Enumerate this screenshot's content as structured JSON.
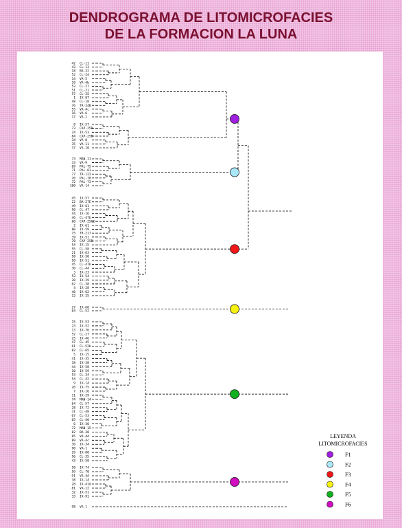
{
  "title_line1": "DENDROGRAMA DE LITOMICROFACIES",
  "title_line2": "DE LA FORMACION LA LUNA",
  "legend": {
    "title": "LEYENDA",
    "subtitle": "LITOMICROFACIES",
    "items": [
      {
        "label": "F1",
        "color": "#a020e0"
      },
      {
        "label": "F2",
        "color": "#a8e8f8"
      },
      {
        "label": "F3",
        "color": "#f01818"
      },
      {
        "label": "F4",
        "color": "#f8f010"
      },
      {
        "label": "F5",
        "color": "#10b020"
      },
      {
        "label": "F6",
        "color": "#d010c0"
      }
    ]
  },
  "dendrogram": {
    "clusters": [
      {
        "leaves": [
          {
            "n": "42",
            "code": "CL-11"
          },
          {
            "n": "43",
            "code": "CL-13"
          },
          {
            "n": "18",
            "code": "BA-32"
          },
          {
            "n": "52",
            "code": "CL-24"
          },
          {
            "n": "14",
            "code": "VA-5"
          },
          {
            "n": "19",
            "code": "VA-4b"
          },
          {
            "n": "53",
            "code": "CL-27"
          },
          {
            "n": "51",
            "code": "CL-21"
          },
          {
            "n": "57",
            "code": "CL-35"
          },
          {
            "n": "1",
            "code": "IX-87"
          },
          {
            "n": "48",
            "code": "CL-18"
          },
          {
            "n": "76",
            "code": "TR-24B"
          },
          {
            "n": "55",
            "code": "VA-4c"
          },
          {
            "n": "16",
            "code": "VA-6"
          },
          {
            "n": "17",
            "code": "VA-1"
          }
        ]
      },
      {
        "leaves": [
          {
            "n": "8",
            "code": "IX-57"
          },
          {
            "n": "73",
            "code": "CAP-25B"
          },
          {
            "n": "24",
            "code": "IX-53"
          },
          {
            "n": "84",
            "code": "CAP-25B"
          },
          {
            "n": "34",
            "code": "VA-8"
          },
          {
            "n": "35",
            "code": "VA-11"
          },
          {
            "n": "37",
            "code": "VA-10"
          }
        ]
      },
      {
        "leaves": [
          {
            "n": "73",
            "code": "MAN-11"
          },
          {
            "n": "33",
            "code": "VA-9"
          },
          {
            "n": "69",
            "code": "PAL-75"
          },
          {
            "n": "71",
            "code": "PAL-81"
          },
          {
            "n": "77",
            "code": "TR-122"
          },
          {
            "n": "70",
            "code": "PAL-78"
          },
          {
            "n": "72",
            "code": "PAL-73"
          },
          {
            "n": "100",
            "code": "VA-14"
          }
        ]
      },
      {
        "leaves": [
          {
            "n": "45",
            "code": "IX-57"
          },
          {
            "n": "22",
            "code": "BA-27E"
          },
          {
            "n": "49",
            "code": "IX-61"
          },
          {
            "n": "50",
            "code": "CL-47"
          },
          {
            "n": "44",
            "code": "IX-16"
          },
          {
            "n": "46",
            "code": "CL-47b"
          },
          {
            "n": "60",
            "code": "CAP-25C2"
          },
          {
            "n": "2",
            "code": "IX-61"
          },
          {
            "n": "80",
            "code": "IX-59"
          },
          {
            "n": "75",
            "code": "TR-217"
          },
          {
            "n": "39",
            "code": "IX-51"
          },
          {
            "n": "78",
            "code": "CAP-25B"
          },
          {
            "n": "54",
            "code": "IX-15"
          },
          {
            "n": "55",
            "code": "CL-58"
          },
          {
            "n": "21",
            "code": "IX-63"
          },
          {
            "n": "58",
            "code": "IX-50"
          },
          {
            "n": "59",
            "code": "IX-51"
          },
          {
            "n": "45",
            "code": "CL-47b"
          },
          {
            "n": "30",
            "code": "CL-44"
          },
          {
            "n": "3",
            "code": "IX-23"
          },
          {
            "n": "53",
            "code": "IX-54"
          },
          {
            "n": "20",
            "code": "IX-29"
          },
          {
            "n": "62",
            "code": "CL-38"
          },
          {
            "n": "4",
            "code": "IX-28"
          },
          {
            "n": "40",
            "code": "IX-62"
          },
          {
            "n": "12",
            "code": "IX-25"
          }
        ]
      },
      {
        "leaves": [
          {
            "n": "27",
            "code": "IX-60"
          },
          {
            "n": "63",
            "code": "CL-52"
          }
        ]
      },
      {
        "leaves": [
          {
            "n": "15",
            "code": "IX-53"
          },
          {
            "n": "23",
            "code": "IX-52"
          },
          {
            "n": "13",
            "code": "IX-76"
          },
          {
            "n": "52",
            "code": "CL-27"
          },
          {
            "n": "25",
            "code": "IX-46"
          },
          {
            "n": "47",
            "code": "CL-45"
          },
          {
            "n": "61",
            "code": "CL-52b"
          },
          {
            "n": "82",
            "code": "CL-65"
          },
          {
            "n": "5",
            "code": "IX-15"
          },
          {
            "n": "41",
            "code": "IX-35"
          },
          {
            "n": "18",
            "code": "IX-38"
          },
          {
            "n": "44",
            "code": "IX-58"
          },
          {
            "n": "10",
            "code": "IX-59"
          },
          {
            "n": "53",
            "code": "CL-34"
          },
          {
            "n": "54",
            "code": "CL-42"
          },
          {
            "n": "9",
            "code": "IX-14"
          },
          {
            "n": "26",
            "code": "IX-75"
          },
          {
            "n": "7",
            "code": "IX-16"
          },
          {
            "n": "11",
            "code": "IX-29"
          },
          {
            "n": "74",
            "code": "MAN-14"
          },
          {
            "n": "64",
            "code": "CL-57"
          },
          {
            "n": "28",
            "code": "IX-72"
          },
          {
            "n": "31",
            "code": "CL-48"
          },
          {
            "n": "67",
            "code": "CL-53"
          },
          {
            "n": "65",
            "code": "CL-40"
          },
          {
            "n": "6",
            "code": "IX-30"
          },
          {
            "n": "72",
            "code": "MAN-15"
          },
          {
            "n": "82",
            "code": "BA-38"
          },
          {
            "n": "85",
            "code": "VA-4A"
          },
          {
            "n": "89",
            "code": "VA-4c"
          },
          {
            "n": "36",
            "code": "IX-34"
          },
          {
            "n": "90",
            "code": "VA-1"
          },
          {
            "n": "29",
            "code": "IX-80"
          },
          {
            "n": "56",
            "code": "CL-35"
          },
          {
            "n": "43",
            "code": "IX-58"
          }
        ]
      },
      {
        "leaves": [
          {
            "n": "58",
            "code": "IX-74"
          },
          {
            "n": "59",
            "code": "CL-70"
          },
          {
            "n": "91",
            "code": "VA-4A"
          },
          {
            "n": "38",
            "code": "IX-14"
          },
          {
            "n": "28",
            "code": "IX-41A"
          },
          {
            "n": "81",
            "code": "VA-12"
          },
          {
            "n": "32",
            "code": "IX-51"
          },
          {
            "n": "33",
            "code": "IX-91"
          }
        ]
      },
      {
        "leaves": [
          {
            "n": "98",
            "code": "VA-1"
          }
        ]
      }
    ]
  }
}
